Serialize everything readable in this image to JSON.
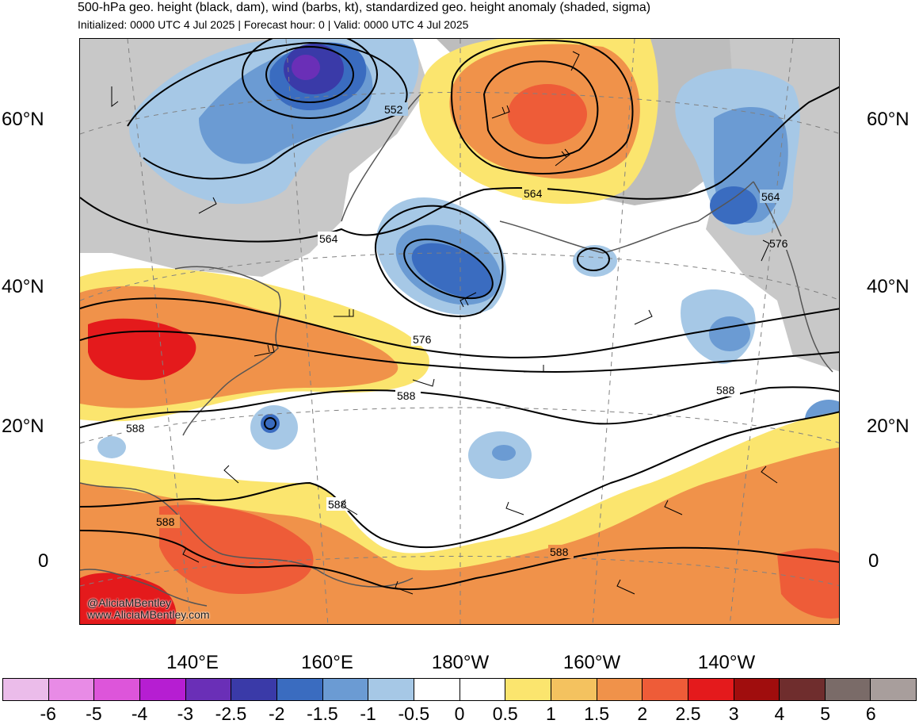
{
  "header": {
    "title": "500-hPa geo. height (black, dam), wind (barbs, kt), standardized geo. height anomaly (shaded, sigma)",
    "subtitle": "Initialized: 0000 UTC 4 Jul 2025 | Forecast hour: 0 | Valid: 0000 UTC 4 Jul 2025"
  },
  "map": {
    "lat_labels": [
      "60°N",
      "40°N",
      "20°N",
      "0"
    ],
    "lon_labels": [
      "140°E",
      "160°E",
      "180°W",
      "160°W",
      "140°W"
    ],
    "contour_labels": [
      "552",
      "564",
      "564",
      "564",
      "576",
      "576",
      "588",
      "588",
      "588",
      "588",
      "588",
      "588"
    ],
    "watermark": [
      "@AliciaMBentley",
      "www.AliciaMBentley.com"
    ]
  },
  "colorbar": {
    "labels": [
      "-6",
      "-5",
      "-4",
      "-3",
      "-2.5",
      "-2",
      "-1.5",
      "-1",
      "-0.5",
      "0",
      "0.5",
      "1",
      "1.5",
      "2",
      "2.5",
      "3",
      "4",
      "5",
      "6"
    ],
    "colors": [
      "#ebbcea",
      "#e88be6",
      "#dd55da",
      "#b61ed2",
      "#6a2fb7",
      "#3a3aa8",
      "#3a6cc0",
      "#6b9bd3",
      "#a6c8e6",
      "#ffffff",
      "#ffffff",
      "#fbe56e",
      "#f4c25f",
      "#f0924a",
      "#ee5c38",
      "#e41a1c",
      "#a00d0d",
      "#6f2d2d",
      "#7a6b68",
      "#a89e9c"
    ]
  },
  "colors": {
    "land": "#c8c8c8",
    "coast": "#555555",
    "contour": "#000000"
  }
}
